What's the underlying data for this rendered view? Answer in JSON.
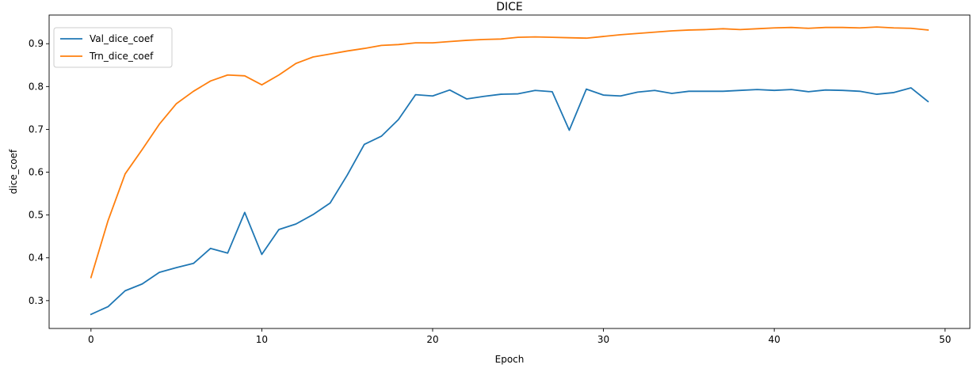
{
  "chart_data": {
    "type": "line",
    "title": "DICE",
    "xlabel": "Epoch",
    "ylabel": "dice_coef",
    "xlim": [
      -2.45,
      51.45
    ],
    "ylim": [
      0.235,
      0.967
    ],
    "xticks": [
      0,
      10,
      20,
      30,
      40,
      50
    ],
    "yticks": [
      0.3,
      0.4,
      0.5,
      0.6,
      0.7,
      0.8,
      0.9
    ],
    "ytick_labels": [
      "0.3",
      "0.4",
      "0.5",
      "0.6",
      "0.7",
      "0.8",
      "0.9"
    ],
    "grid": false,
    "legend_position": "top-left",
    "x": [
      0,
      1,
      2,
      3,
      4,
      5,
      6,
      7,
      8,
      9,
      10,
      11,
      12,
      13,
      14,
      15,
      16,
      17,
      18,
      19,
      20,
      21,
      22,
      23,
      24,
      25,
      26,
      27,
      28,
      29,
      30,
      31,
      32,
      33,
      34,
      35,
      36,
      37,
      38,
      39,
      40,
      41,
      42,
      43,
      44,
      45,
      46,
      47,
      48,
      49
    ],
    "series": [
      {
        "name": "Val_dice_coef",
        "color": "#1f77b4",
        "values": [
          0.268,
          0.286,
          0.323,
          0.339,
          0.366,
          0.377,
          0.387,
          0.422,
          0.411,
          0.506,
          0.408,
          0.466,
          0.479,
          0.501,
          0.528,
          0.593,
          0.665,
          0.684,
          0.723,
          0.781,
          0.778,
          0.792,
          0.771,
          0.777,
          0.782,
          0.783,
          0.791,
          0.788,
          0.698,
          0.794,
          0.78,
          0.778,
          0.787,
          0.791,
          0.784,
          0.789,
          0.789,
          0.789,
          0.791,
          0.793,
          0.791,
          0.793,
          0.788,
          0.792,
          0.791,
          0.789,
          0.782,
          0.786,
          0.797,
          0.765
        ]
      },
      {
        "name": "Trn_dice_coef",
        "color": "#ff7f0e",
        "values": [
          0.354,
          0.487,
          0.596,
          0.653,
          0.712,
          0.76,
          0.789,
          0.813,
          0.827,
          0.825,
          0.804,
          0.827,
          0.854,
          0.869,
          0.876,
          0.883,
          0.889,
          0.896,
          0.898,
          0.902,
          0.902,
          0.905,
          0.908,
          0.91,
          0.911,
          0.915,
          0.916,
          0.915,
          0.914,
          0.913,
          0.917,
          0.921,
          0.924,
          0.927,
          0.93,
          0.932,
          0.933,
          0.935,
          0.933,
          0.935,
          0.937,
          0.938,
          0.936,
          0.938,
          0.938,
          0.937,
          0.939,
          0.937,
          0.936,
          0.932
        ]
      }
    ]
  }
}
